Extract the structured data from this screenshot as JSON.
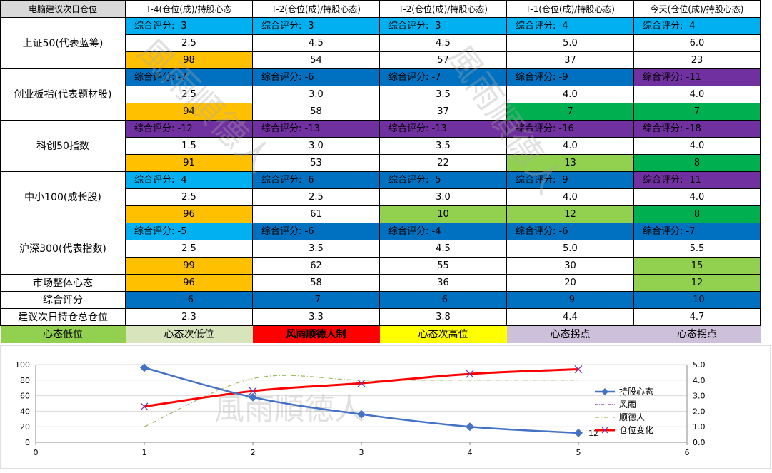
{
  "sheet": {
    "header": [
      "电脑建议次日仓位",
      "T-4(仓位(成)/持股心态",
      "T-2(仓位(成)/持股心态)",
      "T-2(仓位(成)/持股心态)",
      "T-1(仓位(成)/持股心态)",
      "今天(仓位(成)/持股心态)"
    ],
    "groups": [
      {
        "name": "上证50(代表蓝筹)",
        "scores": [
          "综合评分: -3",
          "综合评分: -3",
          "综合评分: -3",
          "综合评分: -4",
          "综合评分: -4"
        ],
        "score_colors": [
          "#00b0f0",
          "#00b0f0",
          "#00b0f0",
          "#00b0f0",
          "#00b0f0"
        ],
        "positions": [
          "2.5",
          "4.5",
          "4.5",
          "5.0",
          "6.0"
        ],
        "moods": [
          "98",
          "54",
          "57",
          "37",
          "23"
        ],
        "mood_colors": [
          "#ffc000",
          "#ffffff",
          "#ffffff",
          "#ffffff",
          "#ffffff"
        ]
      },
      {
        "name": "创业板指(代表题材股)",
        "scores": [
          "综合评分: -7",
          "综合评分: -6",
          "综合评分: -7",
          "综合评分: -9",
          "综合评分: -11"
        ],
        "score_colors": [
          "#0070c0",
          "#0070c0",
          "#0070c0",
          "#0070c0",
          "#7030a0"
        ],
        "positions": [
          "2.5",
          "3.0",
          "3.5",
          "4.0",
          "4.0"
        ],
        "moods": [
          "94",
          "58",
          "37",
          "7",
          "7"
        ],
        "mood_colors": [
          "#ffc000",
          "#ffffff",
          "#ffffff",
          "#00b050",
          "#00b050"
        ]
      },
      {
        "name": "科创50指数",
        "scores": [
          "综合评分: -12",
          "综合评分: -13",
          "综合评分: -13",
          "综合评分: -16",
          "综合评分: -18"
        ],
        "score_colors": [
          "#7030a0",
          "#7030a0",
          "#7030a0",
          "#7030a0",
          "#7030a0"
        ],
        "positions": [
          "1.5",
          "3.0",
          "3.5",
          "4.0",
          "4.0"
        ],
        "moods": [
          "91",
          "53",
          "22",
          "13",
          "8"
        ],
        "mood_colors": [
          "#ffc000",
          "#ffffff",
          "#ffffff",
          "#92d050",
          "#00b050"
        ]
      },
      {
        "name": "中小100(成长股)",
        "scores": [
          "综合评分: -4",
          "综合评分: -6",
          "综合评分: -5",
          "综合评分: -9",
          "综合评分: -11"
        ],
        "score_colors": [
          "#00b0f0",
          "#0070c0",
          "#0070c0",
          "#0070c0",
          "#7030a0"
        ],
        "positions": [
          "2.5",
          "2.5",
          "3.0",
          "4.0",
          "4.0"
        ],
        "moods": [
          "96",
          "61",
          "10",
          "12",
          "8"
        ],
        "mood_colors": [
          "#ffc000",
          "#ffffff",
          "#92d050",
          "#92d050",
          "#00b050"
        ]
      },
      {
        "name": "沪深300(代表指数)",
        "scores": [
          "综合评分: -5",
          "综合评分: -6",
          "综合评分: -4",
          "综合评分: -6",
          "综合评分: -7"
        ],
        "score_colors": [
          "#00b0f0",
          "#0070c0",
          "#0070c0",
          "#0070c0",
          "#0070c0"
        ],
        "positions": [
          "2.5",
          "3.5",
          "4.5",
          "5.0",
          "5.5"
        ],
        "moods": [
          "99",
          "62",
          "55",
          "30",
          "15"
        ],
        "mood_colors": [
          "#ffc000",
          "#ffffff",
          "#ffffff",
          "#ffffff",
          "#92d050"
        ]
      }
    ],
    "market_mood": {
      "name": "市场整体心态",
      "values": [
        "96",
        "58",
        "36",
        "20",
        "12"
      ],
      "colors": [
        "#ffc000",
        "#ffffff",
        "#ffffff",
        "#ffffff",
        "#92d050"
      ]
    },
    "overall_score": {
      "name": "综合评分",
      "values": [
        "-6",
        "-7",
        "-6",
        "-9",
        "-10"
      ]
    },
    "next_day_position": {
      "name": "建议次日持仓总仓位",
      "values": [
        "2.3",
        "3.3",
        "3.8",
        "4.4",
        "4.7"
      ]
    },
    "legend": [
      {
        "label": "心态低位",
        "color": "#92d050"
      },
      {
        "label": "心态次低位",
        "color": "#d8e4bc"
      },
      {
        "label": "风雨顺德人制",
        "color": "#ff0000"
      },
      {
        "label": "心态次高位",
        "color": "#ffff00"
      },
      {
        "label": "心态拐点",
        "color": "#ccc0da"
      },
      {
        "label": "心态拐点",
        "color": "#ccc0da"
      }
    ]
  },
  "watermark_text": "風雨順德人",
  "chart_data": {
    "type": "line",
    "x": [
      1,
      2,
      3,
      4,
      5
    ],
    "xlim": [
      0,
      6
    ],
    "ylim": [
      0,
      100
    ],
    "y2lim": [
      0,
      5
    ],
    "x_ticks": [
      "0",
      "1",
      "2",
      "3",
      "4",
      "5",
      "6"
    ],
    "y_ticks": [
      "0",
      "20",
      "40",
      "60",
      "80",
      "100"
    ],
    "y2_ticks": [
      "0.0",
      "1.0",
      "2.0",
      "3.0",
      "4.0",
      "5.0"
    ],
    "grid": true,
    "legend_position": "right",
    "series": [
      {
        "name": "持股心态",
        "axis": "left",
        "values": [
          96,
          58,
          36,
          20,
          12
        ],
        "color": "#4472c4"
      },
      {
        "name": "风雨",
        "axis": "right",
        "values": [
          2.3,
          3.3,
          3.8,
          4.4,
          4.7
        ],
        "color": "#7030a0"
      },
      {
        "name": "顺德人",
        "axis": "right",
        "values": [
          1.0,
          4.1,
          4.0,
          4.0,
          4.0
        ],
        "color": "#9bbb59"
      },
      {
        "name": "仓位变化",
        "axis": "right",
        "values": [
          2.3,
          3.3,
          3.8,
          4.4,
          4.7
        ],
        "color": "#ff0000"
      }
    ],
    "data_labels": [
      {
        "series": "持股心态",
        "index": 4,
        "text": "12"
      }
    ]
  }
}
